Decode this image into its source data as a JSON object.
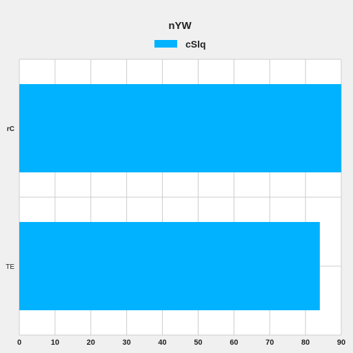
{
  "chart_data": {
    "type": "bar",
    "orientation": "horizontal",
    "title": "nYW",
    "categories": [
      "rC",
      "TE"
    ],
    "series": [
      {
        "name": "cSlq",
        "values": [
          90,
          84
        ],
        "color": "#00b2ff"
      }
    ],
    "xlim": [
      0,
      90
    ],
    "x_ticks": [
      "0",
      "10",
      "20",
      "30",
      "40",
      "50",
      "60",
      "70",
      "80",
      "90"
    ],
    "xlabel": "",
    "ylabel": "",
    "grid": true,
    "legend_position": "top-center"
  }
}
